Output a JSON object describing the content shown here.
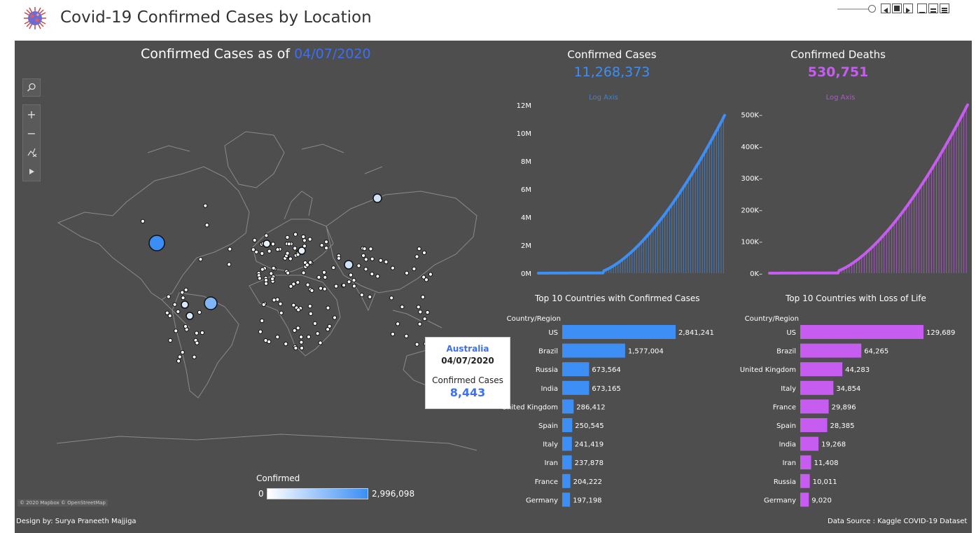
{
  "header": {
    "title": "Covid-19 Confirmed Cases by Location"
  },
  "map": {
    "title_prefix": "Confirmed Cases as of",
    "title_date": "04/07/2020",
    "attribution": "© 2020 Mapbox © OpenStreetMap",
    "legend": {
      "title": "Confirmed",
      "min": "0",
      "max": "2,996,098",
      "color_low": "#ffffff",
      "color_high": "#3a8ef5"
    },
    "tools": [
      "search-icon",
      "zoom-in-icon",
      "zoom-out-icon",
      "pin-off-icon",
      "play-icon"
    ]
  },
  "tooltip": {
    "country": "Australia",
    "date": "04/07/2020",
    "label": "Confirmed Cases",
    "value": "8,443"
  },
  "kpi": {
    "cases_title": "Confirmed Cases",
    "cases_value": "11,268,373",
    "deaths_title": "Confirmed Deaths",
    "deaths_value": "530,751"
  },
  "colors": {
    "cases": "#3d8ff5",
    "deaths": "#c65cf0",
    "background": "#4e4e4e"
  },
  "chart_data": [
    {
      "type": "area",
      "name": "cases-over-time",
      "note": "Log Axis",
      "y_ticks": [
        "0M",
        "2M",
        "4M",
        "6M",
        "8M",
        "10M",
        "12M"
      ],
      "ylim": [
        0,
        12000000
      ],
      "y_start": 0,
      "y_end": 11268373,
      "color": "#3d8ff5"
    },
    {
      "type": "area",
      "name": "deaths-over-time",
      "note": "Log Axis",
      "y_ticks": [
        "0K",
        "100K",
        "200K",
        "300K",
        "400K",
        "500K"
      ],
      "ylim": [
        0,
        530000
      ],
      "y_start": 0,
      "y_end": 530751,
      "color": "#c65cf0"
    },
    {
      "type": "bar",
      "name": "top10-cases",
      "title": "Top 10 Countries with Confirmed Cases",
      "header": "Country/Region",
      "categories": [
        "US",
        "Brazil",
        "Russia",
        "India",
        "United Kingdom",
        "Spain",
        "Italy",
        "Iran",
        "France",
        "Germany"
      ],
      "values": [
        2841241,
        1577004,
        673564,
        673165,
        286412,
        250545,
        241419,
        237878,
        204222,
        197198
      ],
      "labels": [
        "2,841,241",
        "1,577,004",
        "673,564",
        "673,165",
        "286,412",
        "250,545",
        "241,419",
        "237,878",
        "204,222",
        "197,198"
      ],
      "color": "#3d8ff5"
    },
    {
      "type": "bar",
      "name": "top10-deaths",
      "title": "Top 10 Countries with Loss of Life",
      "header": "Country/Region",
      "categories": [
        "US",
        "Brazil",
        "United Kingdom",
        "Italy",
        "France",
        "Spain",
        "India",
        "Iran",
        "Russia",
        "Germany"
      ],
      "values": [
        129689,
        64265,
        44283,
        34854,
        29896,
        28385,
        19268,
        11408,
        10011,
        9020
      ],
      "labels": [
        "129,689",
        "64,265",
        "44,283",
        "34,854",
        "29,896",
        "28,385",
        "19,268",
        "11,408",
        "10,011",
        "9,020"
      ],
      "color": "#c65cf0"
    }
  ],
  "footer": {
    "left": "Design by: Surya Praneeth Majjiga",
    "right": "Data Source : Kaggle COVID-19 Dataset"
  }
}
